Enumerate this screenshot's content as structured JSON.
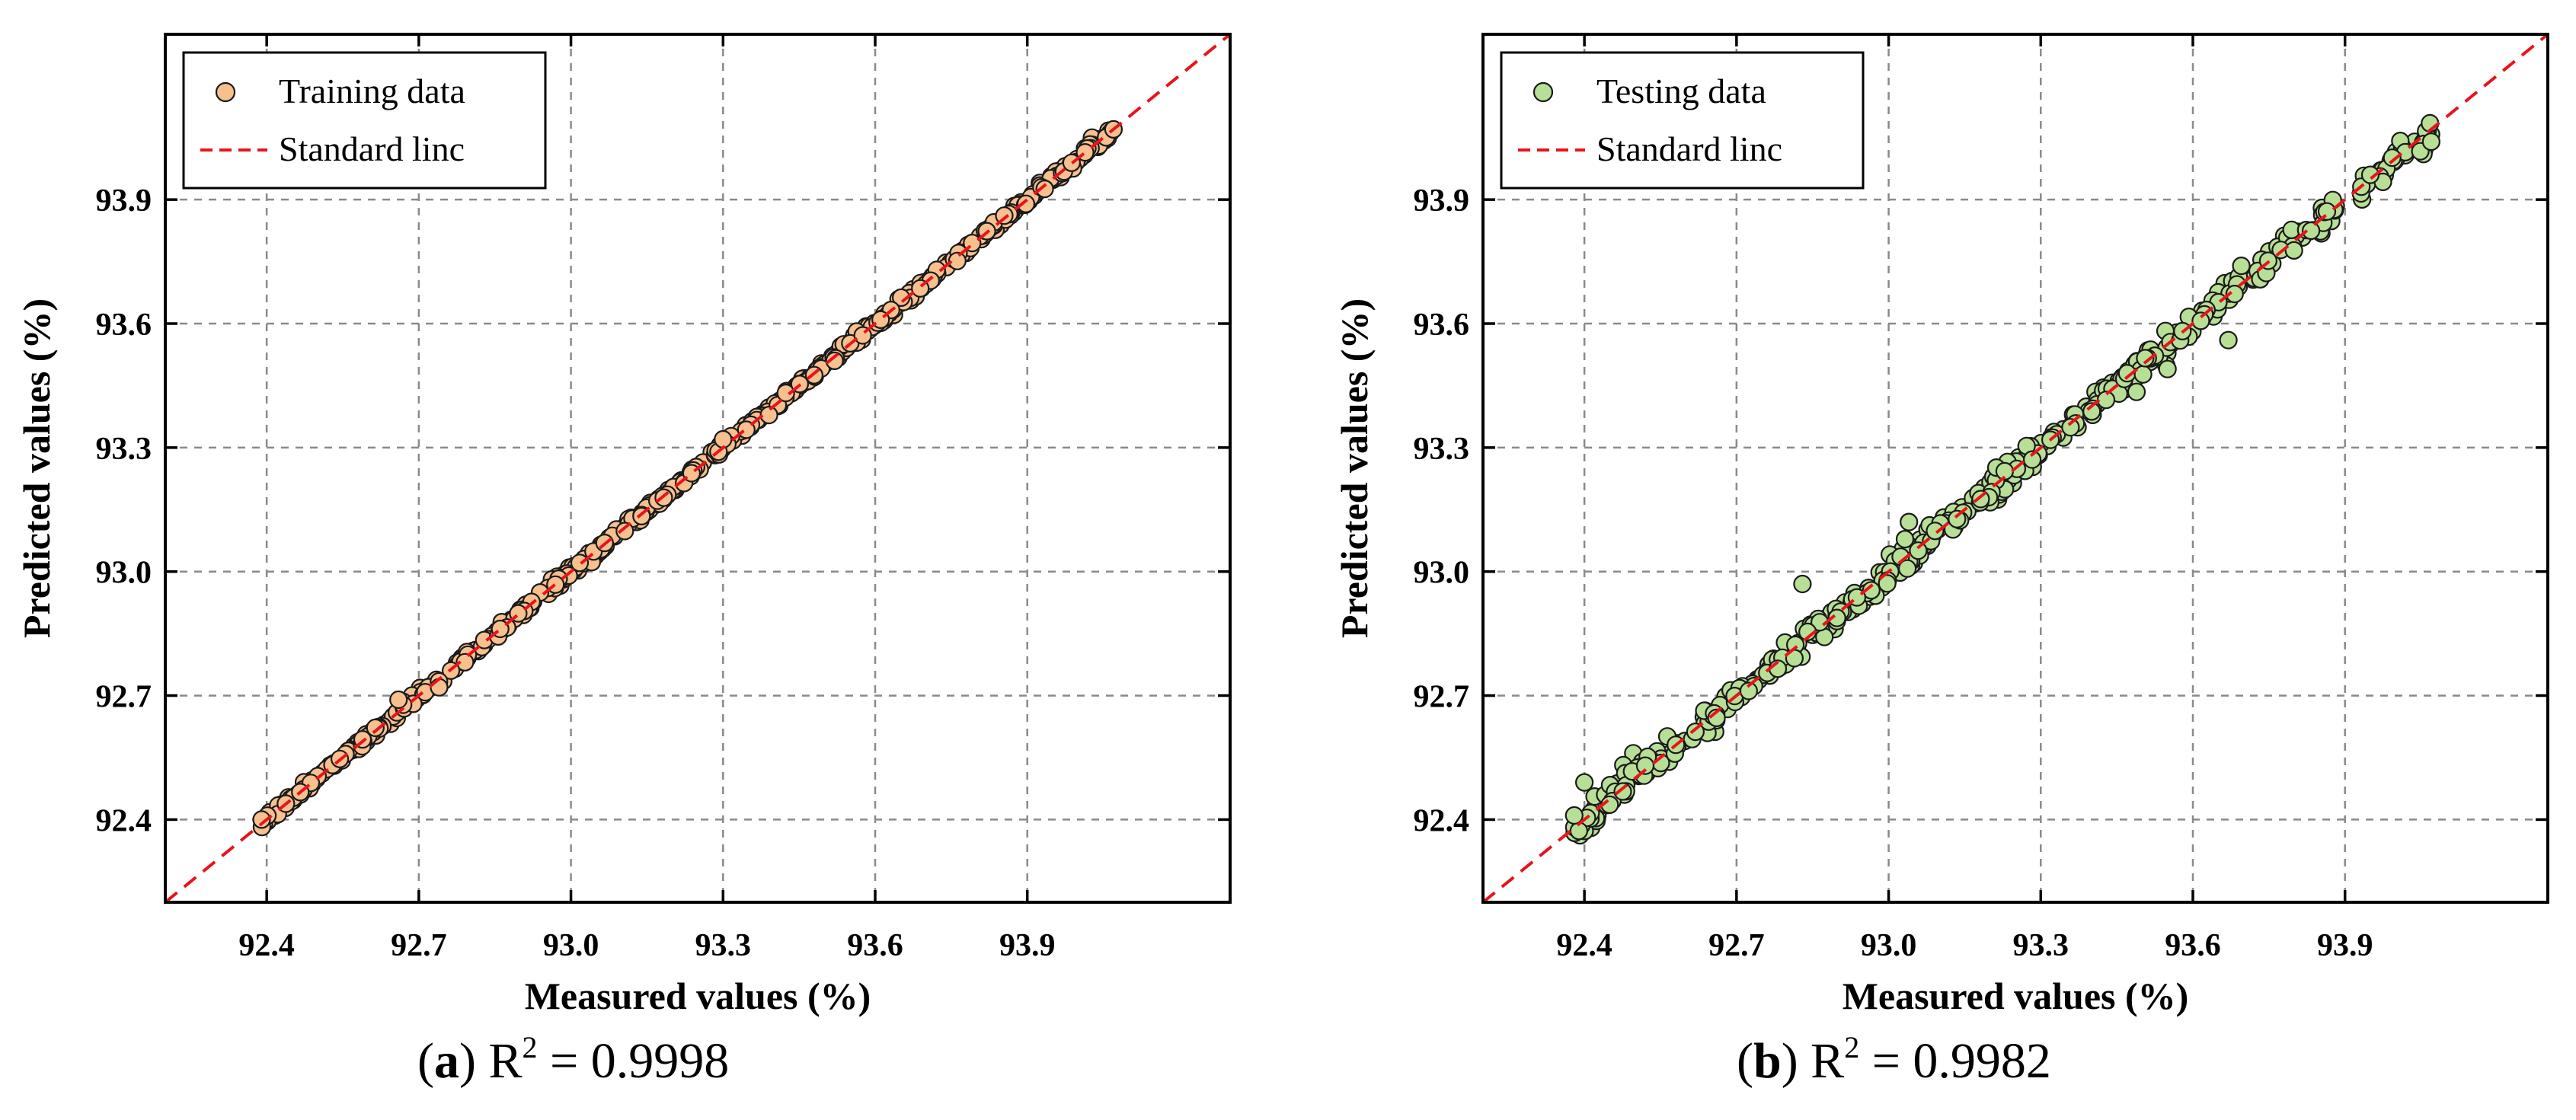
{
  "colors": {
    "training_marker": "#f6c08f",
    "testing_marker": "#b8df96",
    "marker_edge": "#1a1a1a",
    "standard_line": "#e8141b",
    "grid": "#8a8a8a",
    "axis": "#000000"
  },
  "chart_data": [
    {
      "type": "scatter",
      "panel": "a",
      "xlabel": "Measured values (%)",
      "ylabel": "Predicted values (%)",
      "xlim": [
        92.2,
        94.3
      ],
      "ylim": [
        92.2,
        94.3
      ],
      "xticks": [
        92.4,
        92.7,
        93.0,
        93.3,
        93.6,
        93.9
      ],
      "yticks": [
        92.4,
        92.7,
        93.0,
        93.3,
        93.6,
        93.9
      ],
      "tick_labels": [
        "92.4",
        "92.7",
        "93.0",
        "93.3",
        "93.6",
        "93.9"
      ],
      "grid": true,
      "legend_position": "top-left",
      "legend": {
        "scatter": "Training data",
        "line": "Standard linc"
      },
      "reference_line": {
        "name": "Standard linc",
        "from": [
          92.2,
          92.2
        ],
        "to": [
          94.3,
          94.3
        ]
      },
      "series": [
        {
          "name": "Training data",
          "range": [
            92.39,
            94.07
          ],
          "count": 520,
          "noise_sd": 0.006,
          "seed": 7,
          "points": [
            [
              92.39,
              92.4
            ],
            [
              92.66,
              92.69
            ],
            [
              92.74,
              92.72
            ],
            [
              93.3,
              93.32
            ],
            [
              93.52,
              93.51
            ],
            [
              94.07,
              94.07
            ]
          ]
        }
      ],
      "caption": {
        "letter": "a",
        "r2_value": "= 0.9998"
      }
    },
    {
      "type": "scatter",
      "panel": "b",
      "xlabel": "Measured values (%)",
      "ylabel": "Predicted values (%)",
      "xlim": [
        92.2,
        94.3
      ],
      "ylim": [
        92.2,
        94.3
      ],
      "xticks": [
        92.4,
        92.7,
        93.0,
        93.3,
        93.6,
        93.9
      ],
      "yticks": [
        92.4,
        92.7,
        93.0,
        93.3,
        93.6,
        93.9
      ],
      "tick_labels": [
        "92.4",
        "92.7",
        "93.0",
        "93.3",
        "93.6",
        "93.9"
      ],
      "grid": true,
      "legend_position": "top-left",
      "legend": {
        "scatter": "Testing data",
        "line": "Standard linc"
      },
      "reference_line": {
        "name": "Standard linc",
        "from": [
          92.2,
          92.2
        ],
        "to": [
          94.3,
          94.3
        ]
      },
      "series": [
        {
          "name": "Testing data",
          "range": [
            92.38,
            94.07
          ],
          "gap": [
            93.89,
            93.93
          ],
          "count": 460,
          "noise_sd": 0.018,
          "seed": 11,
          "points": [
            [
              92.38,
              92.41
            ],
            [
              92.4,
              92.49
            ],
            [
              92.83,
              92.97
            ],
            [
              93.04,
              93.12
            ],
            [
              93.55,
              93.49
            ],
            [
              93.67,
              93.56
            ],
            [
              93.95,
              93.96
            ],
            [
              94.07,
              94.04
            ]
          ]
        }
      ],
      "caption": {
        "letter": "b",
        "r2_value": "= 0.9982"
      }
    }
  ]
}
